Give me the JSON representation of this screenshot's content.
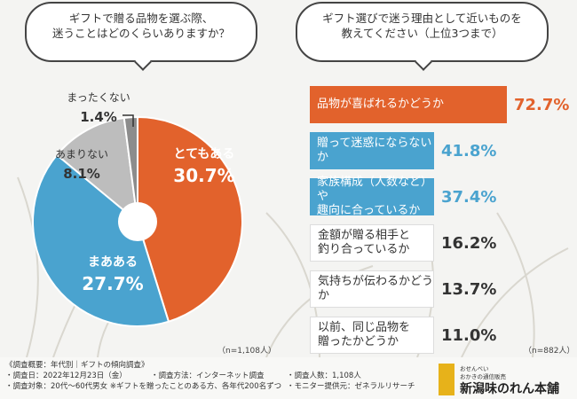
{
  "q1": {
    "line1": "ギフトで贈る品物を選ぶ際、",
    "line2": "迷うことはどのくらいありますか？"
  },
  "q2": {
    "line1": "ギフト選びで迷う理由として近いものを",
    "line2": "教えてください（上位3つまで）"
  },
  "chart_data": [
    {
      "type": "pie",
      "title": "ギフトで贈る品物を選ぶ際、迷うことはどのくらいありますか？",
      "labels": [
        "とてもある",
        "まあある",
        "あまりない",
        "まったくない"
      ],
      "values": [
        30.7,
        27.7,
        8.1,
        1.4
      ],
      "value_labels": [
        "30.7%",
        "27.7%",
        "8.1%",
        "1.4%"
      ],
      "colors": [
        "#e2622c",
        "#4aa3cf",
        "#bdbdbd",
        "#8c8c8c"
      ],
      "note": "（n=1,108人）"
    },
    {
      "type": "bar",
      "title": "ギフト選びで迷う理由として近いものを教えてください（上位3つまで）",
      "categories": [
        "品物が喜ばれるかどうか",
        "贈って迷惑にならないか",
        "家族構成（人数など）や趣向に合っているか",
        "金額が贈る相手と釣り合っているか",
        "気持ちが伝わるかどうか",
        "以前、同じ品物を贈ったかどうか"
      ],
      "category_lines": [
        [
          "品物が喜ばれるかどうか"
        ],
        [
          "贈って迷惑にならないか"
        ],
        [
          "家族構成（人数など）や",
          "趣向に合っているか"
        ],
        [
          "金額が贈る相手と",
          "釣り合っているか"
        ],
        [
          "気持ちが伝わるかどうか"
        ],
        [
          "以前、同じ品物を",
          "贈ったかどうか"
        ]
      ],
      "values": [
        72.7,
        41.8,
        37.4,
        16.2,
        13.7,
        11.0
      ],
      "value_labels": [
        "72.7%",
        "41.8%",
        "37.4%",
        "16.2%",
        "13.7%",
        "11.0%"
      ],
      "colors": [
        "#e2622c",
        "#4aa3cf",
        "#4aa3cf",
        "#ffffff",
        "#ffffff",
        "#ffffff"
      ],
      "value_colors": [
        "#e2622c",
        "#4aa3cf",
        "#4aa3cf",
        "#333333",
        "#333333",
        "#333333"
      ],
      "note": "（n=882人）"
    }
  ],
  "footer": {
    "heading": "《調査概要：年代別｜ギフトの傾向調査》",
    "date": "・調査日：2022年12月23日（金）",
    "target": "・調査対象：20代〜60代男女 ※ギフトを贈ったことのある方、各年代200名ずつ",
    "method": "・調査方法：インターネット調査",
    "count": "・調査人数：1,108人",
    "provider": "・モニター提供元：ゼネラルリサーチ"
  },
  "brand": {
    "line1": "おせんべい",
    "line2": "おかきの通信販売",
    "name": "新潟味のれん本舗"
  }
}
